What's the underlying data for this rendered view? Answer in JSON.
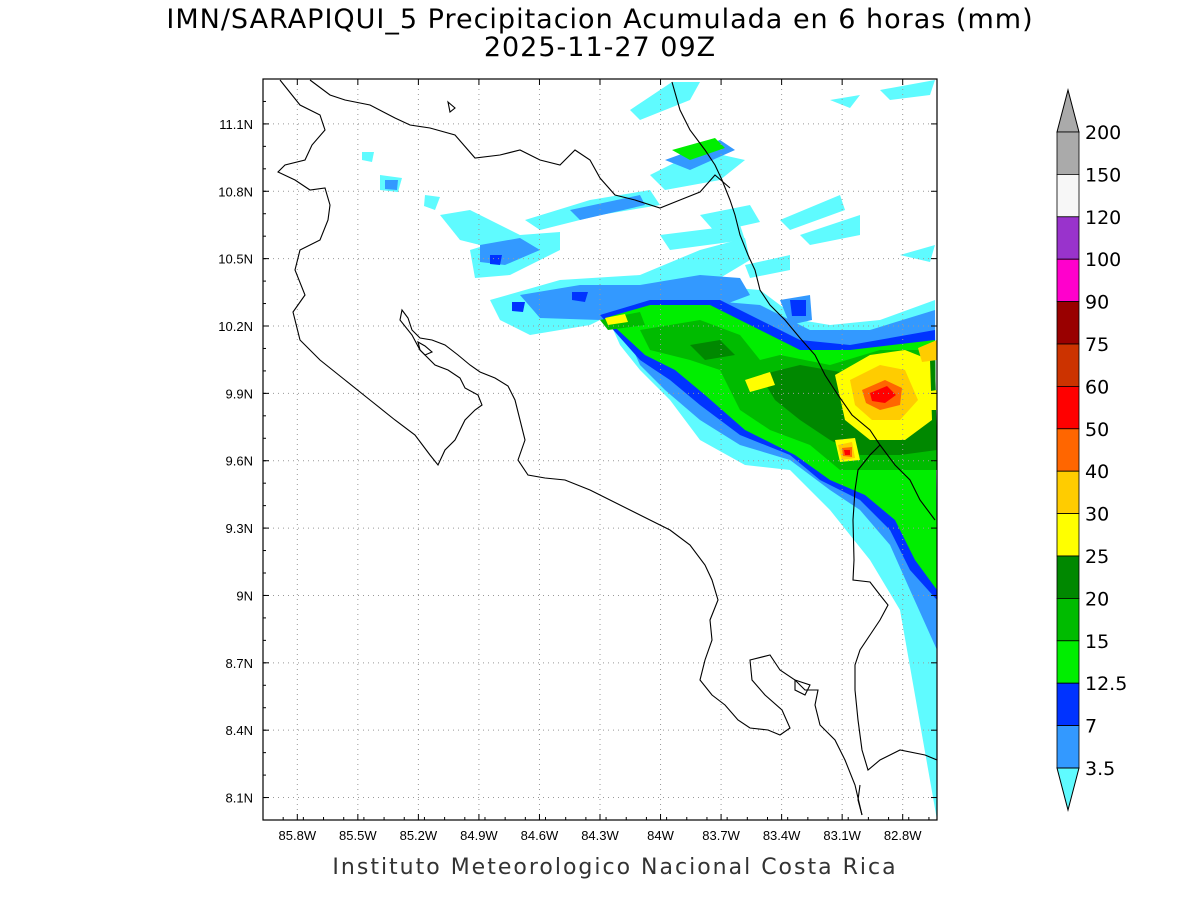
{
  "title": {
    "line1": "IMN/SARAPIQUI_5 Precipitacion Acumulada en 6 horas (mm)",
    "line2": "2025-11-27 09Z"
  },
  "credit": "Instituto Meteorologico Nacional Costa Rica",
  "axes": {
    "lon_ticks": [
      "85.8W",
      "85.5W",
      "85.2W",
      "84.9W",
      "84.6W",
      "84.3W",
      "84W",
      "83.7W",
      "83.4W",
      "83.1W",
      "82.8W"
    ],
    "lat_ticks": [
      "11.1N",
      "10.8N",
      "10.5N",
      "10.2N",
      "9.9N",
      "9.6N",
      "9.3N",
      "9N",
      "8.7N",
      "8.4N",
      "8.1N"
    ],
    "lon_range": [
      -85.97,
      -82.63
    ],
    "lat_range": [
      8.0,
      11.3
    ],
    "grid": "dotted"
  },
  "colorbar": {
    "levels": [
      "3.5",
      "7",
      "12.5",
      "15",
      "20",
      "25",
      "30",
      "40",
      "50",
      "60",
      "75",
      "90",
      "100",
      "120",
      "150",
      "200"
    ],
    "colors": [
      "#5ffbff",
      "#3399ff",
      "#0033ff",
      "#00ee00",
      "#00bb00",
      "#008800",
      "#ffff00",
      "#ffcc00",
      "#ff6600",
      "#ff0000",
      "#cc3300",
      "#990000",
      "#ff00cc",
      "#9933cc",
      "#f7f7f7",
      "#aaaaaa"
    ],
    "triangle_top_color": "#aaaaaa",
    "triangle_bottom_color": "#ffffff"
  }
}
